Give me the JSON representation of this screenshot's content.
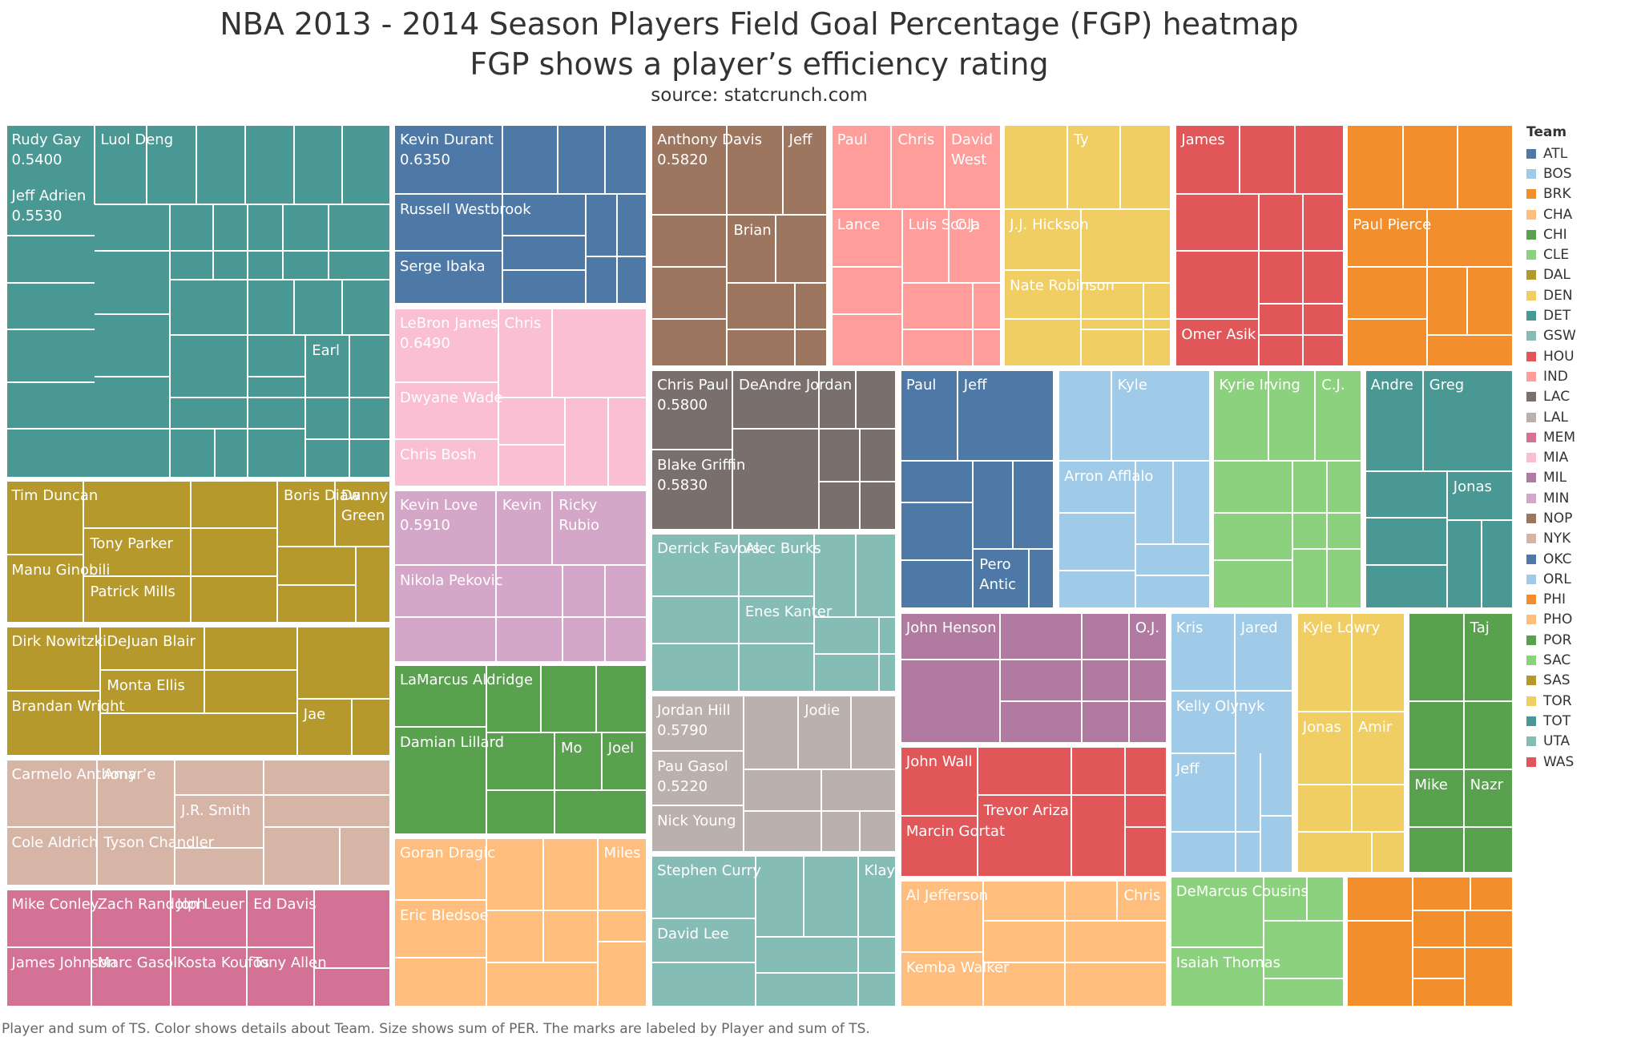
{
  "chart_data": {
    "type": "treemap",
    "title": "NBA 2013 - 2014 Season Players Field Goal Percentage (FGP) heatmap",
    "subtitle": "FGP shows a player’s efficiency rating",
    "source": "source: statcrunch.com",
    "footer": "Player and sum of TS.  Color shows details about Team.  Size shows sum of PER.  The marks are labeled by Player and sum of TS.",
    "legend": {
      "title": "Team",
      "placement": "right",
      "teams": [
        {
          "team": "ATL",
          "color": "#4e79a7"
        },
        {
          "team": "BOS",
          "color": "#a0cbe8"
        },
        {
          "team": "BRK",
          "color": "#f28e2b"
        },
        {
          "team": "CHA",
          "color": "#ffbe7d"
        },
        {
          "team": "CHI",
          "color": "#59a14f"
        },
        {
          "team": "CLE",
          "color": "#8cd17d"
        },
        {
          "team": "DAL",
          "color": "#b6992d"
        },
        {
          "team": "DEN",
          "color": "#f1ce63"
        },
        {
          "team": "DET",
          "color": "#499894"
        },
        {
          "team": "GSW",
          "color": "#86bcb6"
        },
        {
          "team": "HOU",
          "color": "#e15759"
        },
        {
          "team": "IND",
          "color": "#ff9d9a"
        },
        {
          "team": "LAC",
          "color": "#79706e"
        },
        {
          "team": "LAL",
          "color": "#bab0ac"
        },
        {
          "team": "MEM",
          "color": "#d37295"
        },
        {
          "team": "MIA",
          "color": "#fabfd2"
        },
        {
          "team": "MIL",
          "color": "#b07aa1"
        },
        {
          "team": "MIN",
          "color": "#d4a6c8"
        },
        {
          "team": "NOP",
          "color": "#9d7660"
        },
        {
          "team": "NYK",
          "color": "#d7b5a6"
        },
        {
          "team": "OKC",
          "color": "#4e79a7"
        },
        {
          "team": "ORL",
          "color": "#a0cbe8"
        },
        {
          "team": "PHI",
          "color": "#f28e2b"
        },
        {
          "team": "PHO",
          "color": "#ffbe7d"
        },
        {
          "team": "POR",
          "color": "#59a14f"
        },
        {
          "team": "SAC",
          "color": "#8cd17d"
        },
        {
          "team": "SAS",
          "color": "#b6992d"
        },
        {
          "team": "TOR",
          "color": "#f1ce63"
        },
        {
          "team": "TOT",
          "color": "#499894"
        },
        {
          "team": "UTA",
          "color": "#86bcb6"
        },
        {
          "team": "WAS",
          "color": "#e15759"
        }
      ]
    },
    "labeled_marks": [
      {
        "team": "DET",
        "player": "Rudy Gay",
        "ts": "0.5400"
      },
      {
        "team": "DET",
        "player": "Jeff Adrien",
        "ts": "0.5530"
      },
      {
        "team": "DET",
        "player": "Luol Deng",
        "ts": ""
      },
      {
        "team": "DET",
        "player": "Earl",
        "ts": ""
      },
      {
        "team": "OKC",
        "player": "Kevin Durant",
        "ts": "0.6350"
      },
      {
        "team": "OKC",
        "player": "Russell Westbrook",
        "ts": ""
      },
      {
        "team": "OKC",
        "player": "Serge Ibaka",
        "ts": ""
      },
      {
        "team": "NOP",
        "player": "Anthony Davis",
        "ts": "0.5820"
      },
      {
        "team": "NOP",
        "player": "Jeff",
        "ts": ""
      },
      {
        "team": "NOP",
        "player": "Brian",
        "ts": ""
      },
      {
        "team": "IND",
        "player": "Paul",
        "ts": ""
      },
      {
        "team": "IND",
        "player": "Chris",
        "ts": ""
      },
      {
        "team": "IND",
        "player": "David West",
        "ts": ""
      },
      {
        "team": "IND",
        "player": "Lance",
        "ts": ""
      },
      {
        "team": "IND",
        "player": "Luis Scola",
        "ts": ""
      },
      {
        "team": "IND",
        "player": "C.J.",
        "ts": ""
      },
      {
        "team": "DEN",
        "player": "Ty",
        "ts": ""
      },
      {
        "team": "DEN",
        "player": "J.J. Hickson",
        "ts": ""
      },
      {
        "team": "DEN",
        "player": "Nate Robinson",
        "ts": ""
      },
      {
        "team": "HOU",
        "player": "James",
        "ts": ""
      },
      {
        "team": "HOU",
        "player": "Omer Asik",
        "ts": ""
      },
      {
        "team": "BRK",
        "player": "Paul Pierce",
        "ts": ""
      },
      {
        "team": "MIA",
        "player": "LeBron James",
        "ts": "0.6490"
      },
      {
        "team": "MIA",
        "player": "Chris",
        "ts": ""
      },
      {
        "team": "MIA",
        "player": "Dwyane Wade",
        "ts": ""
      },
      {
        "team": "MIA",
        "player": "Chris Bosh",
        "ts": ""
      },
      {
        "team": "LAC",
        "player": "Chris Paul",
        "ts": "0.5800"
      },
      {
        "team": "LAC",
        "player": "DeAndre Jordan",
        "ts": ""
      },
      {
        "team": "LAC",
        "player": "Blake Griffin",
        "ts": "0.5830"
      },
      {
        "team": "ATL",
        "player": "Paul",
        "ts": ""
      },
      {
        "team": "ATL",
        "player": "Jeff",
        "ts": ""
      },
      {
        "team": "ATL",
        "player": "Pero Antic",
        "ts": ""
      },
      {
        "team": "ORL",
        "player": "Kyle",
        "ts": ""
      },
      {
        "team": "ORL",
        "player": "Arron Afflalo",
        "ts": ""
      },
      {
        "team": "CLE",
        "player": "Kyrie Irving",
        "ts": ""
      },
      {
        "team": "CLE",
        "player": "C.J.",
        "ts": ""
      },
      {
        "team": "TOT",
        "player": "Andre",
        "ts": ""
      },
      {
        "team": "TOT",
        "player": "Greg",
        "ts": ""
      },
      {
        "team": "TOT",
        "player": "Jonas",
        "ts": ""
      },
      {
        "team": "SAS",
        "player": "Tim Duncan",
        "ts": ""
      },
      {
        "team": "SAS",
        "player": "Tony Parker",
        "ts": ""
      },
      {
        "team": "SAS",
        "player": "Manu Ginobili",
        "ts": ""
      },
      {
        "team": "SAS",
        "player": "Patrick Mills",
        "ts": ""
      },
      {
        "team": "SAS",
        "player": "Boris Diaw",
        "ts": ""
      },
      {
        "team": "SAS",
        "player": "Danny Green",
        "ts": ""
      },
      {
        "team": "MIN",
        "player": "Kevin Love",
        "ts": "0.5910"
      },
      {
        "team": "MIN",
        "player": "Kevin",
        "ts": ""
      },
      {
        "team": "MIN",
        "player": "Ricky Rubio",
        "ts": ""
      },
      {
        "team": "MIN",
        "player": "Nikola Pekovic",
        "ts": ""
      },
      {
        "team": "UTA",
        "player": "Derrick Favors",
        "ts": ""
      },
      {
        "team": "UTA",
        "player": "Alec Burks",
        "ts": ""
      },
      {
        "team": "UTA",
        "player": "Enes Kanter",
        "ts": ""
      },
      {
        "team": "MIL",
        "player": "John Henson",
        "ts": ""
      },
      {
        "team": "MIL",
        "player": "O.J.",
        "ts": ""
      },
      {
        "team": "BOS",
        "player": "Kris",
        "ts": ""
      },
      {
        "team": "BOS",
        "player": "Jared",
        "ts": ""
      },
      {
        "team": "BOS",
        "player": "Kelly Olynyk",
        "ts": ""
      },
      {
        "team": "BOS",
        "player": "Jeff",
        "ts": ""
      },
      {
        "team": "TOR",
        "player": "Kyle Lowry",
        "ts": ""
      },
      {
        "team": "TOR",
        "player": "Jonas",
        "ts": ""
      },
      {
        "team": "TOR",
        "player": "Amir",
        "ts": ""
      },
      {
        "team": "CHI",
        "player": "Taj",
        "ts": ""
      },
      {
        "team": "CHI",
        "player": "Mike",
        "ts": ""
      },
      {
        "team": "CHI",
        "player": "Nazr",
        "ts": ""
      },
      {
        "team": "DAL",
        "player": "Dirk Nowitzki",
        "ts": ""
      },
      {
        "team": "DAL",
        "player": "DeJuan Blair",
        "ts": ""
      },
      {
        "team": "DAL",
        "player": "Monta Ellis",
        "ts": ""
      },
      {
        "team": "DAL",
        "player": "Brandan Wright",
        "ts": ""
      },
      {
        "team": "DAL",
        "player": "Jae",
        "ts": ""
      },
      {
        "team": "POR",
        "player": "LaMarcus Aldridge",
        "ts": ""
      },
      {
        "team": "POR",
        "player": "Damian Lillard",
        "ts": ""
      },
      {
        "team": "POR",
        "player": "Mo",
        "ts": ""
      },
      {
        "team": "POR",
        "player": "Joel",
        "ts": ""
      },
      {
        "team": "LAL",
        "player": "Jordan Hill",
        "ts": "0.5790"
      },
      {
        "team": "LAL",
        "player": "Jodie",
        "ts": ""
      },
      {
        "team": "LAL",
        "player": "Pau Gasol",
        "ts": "0.5220"
      },
      {
        "team": "LAL",
        "player": "Nick Young",
        "ts": ""
      },
      {
        "team": "WAS",
        "player": "John Wall",
        "ts": ""
      },
      {
        "team": "WAS",
        "player": "Trevor Ariza",
        "ts": ""
      },
      {
        "team": "WAS",
        "player": "Marcin Gortat",
        "ts": ""
      },
      {
        "team": "NYK",
        "player": "Carmelo Anthony",
        "ts": ""
      },
      {
        "team": "NYK",
        "player": "Amar’e",
        "ts": ""
      },
      {
        "team": "NYK",
        "player": "J.R. Smith",
        "ts": ""
      },
      {
        "team": "NYK",
        "player": "Cole Aldrich",
        "ts": ""
      },
      {
        "team": "NYK",
        "player": "Tyson Chandler",
        "ts": ""
      },
      {
        "team": "MEM",
        "player": "Mike Conley",
        "ts": ""
      },
      {
        "team": "MEM",
        "player": "Zach Randolph",
        "ts": ""
      },
      {
        "team": "MEM",
        "player": "Jon Leuer",
        "ts": ""
      },
      {
        "team": "MEM",
        "player": "Ed Davis",
        "ts": ""
      },
      {
        "team": "MEM",
        "player": "James Johnson",
        "ts": ""
      },
      {
        "team": "MEM",
        "player": "Marc Gasol",
        "ts": ""
      },
      {
        "team": "MEM",
        "player": "Kosta Koufos",
        "ts": ""
      },
      {
        "team": "MEM",
        "player": "Tony Allen",
        "ts": ""
      },
      {
        "team": "PHO",
        "player": "Goran Dragic",
        "ts": ""
      },
      {
        "team": "PHO",
        "player": "Miles",
        "ts": ""
      },
      {
        "team": "PHO",
        "player": "Eric Bledsoe",
        "ts": ""
      },
      {
        "team": "GSW",
        "player": "Stephen Curry",
        "ts": ""
      },
      {
        "team": "GSW",
        "player": "Klay",
        "ts": ""
      },
      {
        "team": "GSW",
        "player": "David Lee",
        "ts": ""
      },
      {
        "team": "CHA",
        "player": "Al Jefferson",
        "ts": ""
      },
      {
        "team": "CHA",
        "player": "Chris",
        "ts": ""
      },
      {
        "team": "CHA",
        "player": "Kemba Walker",
        "ts": ""
      },
      {
        "team": "SAC",
        "player": "DeMarcus Cousins",
        "ts": ""
      },
      {
        "team": "SAC",
        "player": "Isaiah Thomas",
        "ts": ""
      }
    ]
  }
}
